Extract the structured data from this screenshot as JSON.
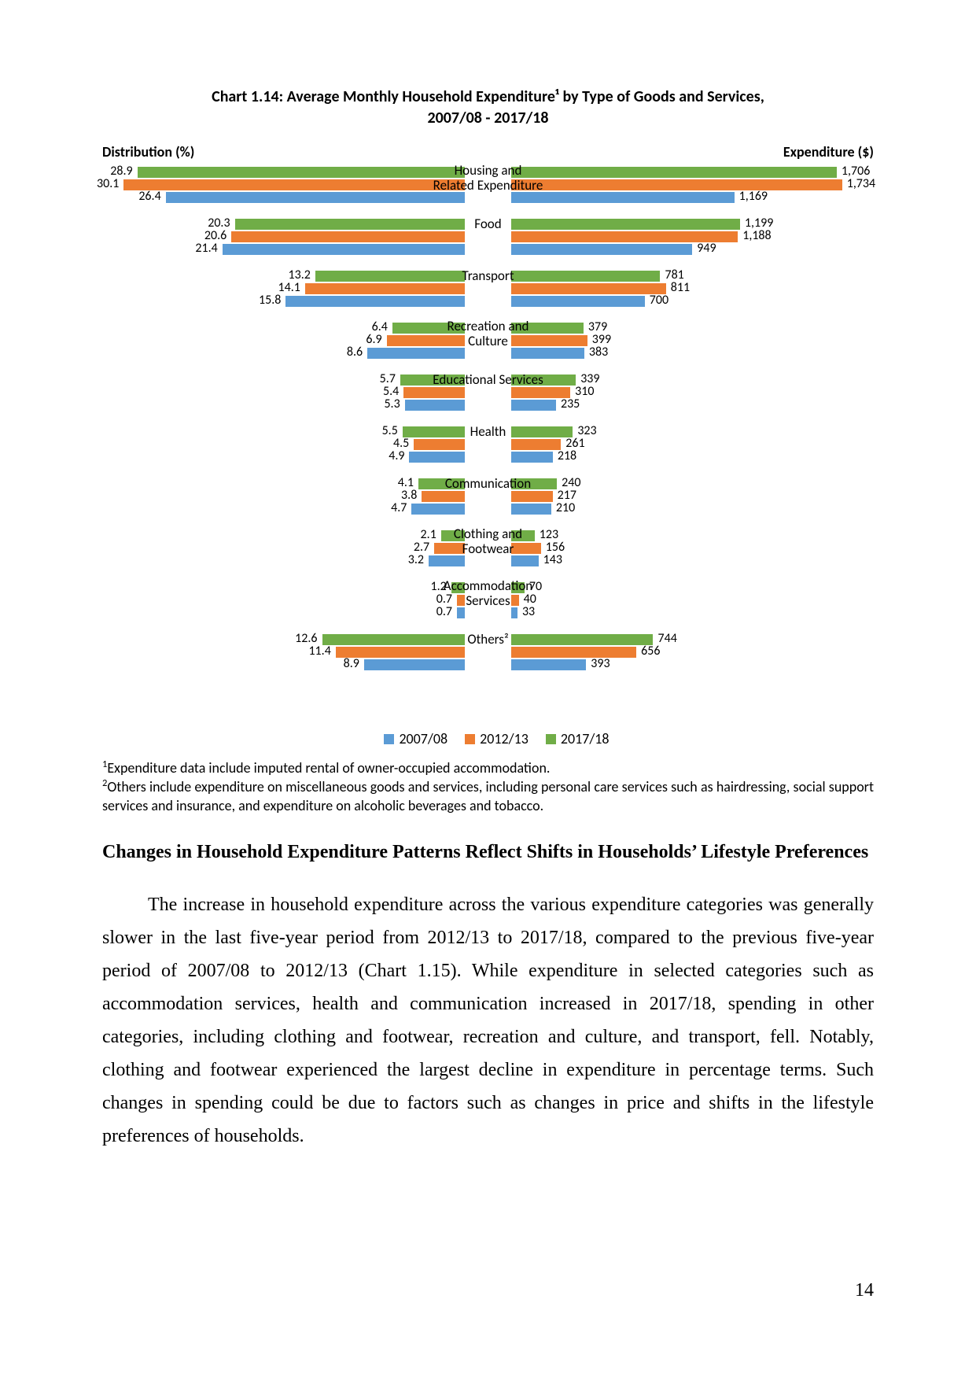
{
  "chart": {
    "title_line1": "Chart 1.14: Average Monthly Household Expenditure¹ by Type of Goods and Services,",
    "title_line2": "2007/08 - 2017/18",
    "axis_left": "Distribution (%)",
    "axis_right": "Expenditure ($)",
    "colors": {
      "y2017": "#70ad47",
      "y2012": "#ed7d31",
      "y2007": "#5b9bd5"
    },
    "dist_max": 32,
    "exp_max": 1900,
    "categories": [
      {
        "label": "Housing and Related Expenditure",
        "two_line": true,
        "dist": {
          "y2017": 28.9,
          "y2012": 30.1,
          "y2007": 26.4
        },
        "exp": {
          "y2017": "1,706",
          "y2012": "1,734",
          "y2007": "1,169"
        },
        "exp_n": {
          "y2017": 1706,
          "y2012": 1734,
          "y2007": 1169
        }
      },
      {
        "label": "Food",
        "dist": {
          "y2017": 20.3,
          "y2012": 20.6,
          "y2007": 21.4
        },
        "exp": {
          "y2017": "1,199",
          "y2012": "1,188",
          "y2007": "949"
        },
        "exp_n": {
          "y2017": 1199,
          "y2012": 1188,
          "y2007": 949
        }
      },
      {
        "label": "Transport",
        "dist": {
          "y2017": 13.2,
          "y2012": 14.1,
          "y2007": 15.8
        },
        "exp": {
          "y2017": "781",
          "y2012": "811",
          "y2007": "700"
        },
        "exp_n": {
          "y2017": 781,
          "y2012": 811,
          "y2007": 700
        }
      },
      {
        "label": "Recreation and Culture",
        "two_line": true,
        "dist": {
          "y2017": 6.4,
          "y2012": 6.9,
          "y2007": 8.6
        },
        "exp": {
          "y2017": "379",
          "y2012": "399",
          "y2007": "383"
        },
        "exp_n": {
          "y2017": 379,
          "y2012": 399,
          "y2007": 383
        }
      },
      {
        "label": "Educational Services",
        "dist": {
          "y2017": 5.7,
          "y2012": 5.4,
          "y2007": 5.3
        },
        "exp": {
          "y2017": "339",
          "y2012": "310",
          "y2007": "235"
        },
        "exp_n": {
          "y2017": 339,
          "y2012": 310,
          "y2007": 235
        }
      },
      {
        "label": "Health",
        "dist": {
          "y2017": 5.5,
          "y2012": 4.5,
          "y2007": 4.9
        },
        "exp": {
          "y2017": "323",
          "y2012": "261",
          "y2007": "218"
        },
        "exp_n": {
          "y2017": 323,
          "y2012": 261,
          "y2007": 218
        }
      },
      {
        "label": "Communication",
        "dist": {
          "y2017": 4.1,
          "y2012": 3.8,
          "y2007": 4.7
        },
        "exp": {
          "y2017": "240",
          "y2012": "217",
          "y2007": "210"
        },
        "exp_n": {
          "y2017": 240,
          "y2012": 217,
          "y2007": 210
        }
      },
      {
        "label": "Clothing and Footwear",
        "two_line": true,
        "dist": {
          "y2017": 2.1,
          "y2012": 2.7,
          "y2007": 3.2
        },
        "exp": {
          "y2017": "123",
          "y2012": "156",
          "y2007": "143"
        },
        "exp_n": {
          "y2017": 123,
          "y2012": 156,
          "y2007": 143
        }
      },
      {
        "label": "Accommodation Services",
        "two_line": true,
        "dist": {
          "y2017": 1.2,
          "y2012": 0.7,
          "y2007": 0.7
        },
        "exp": {
          "y2017": "70",
          "y2012": "40",
          "y2007": "33"
        },
        "exp_n": {
          "y2017": 70,
          "y2012": 40,
          "y2007": 33
        }
      },
      {
        "label": "Others²",
        "dist": {
          "y2017": 12.6,
          "y2012": 11.4,
          "y2007": 8.9
        },
        "exp": {
          "y2017": "744",
          "y2012": "656",
          "y2007": "393"
        },
        "exp_n": {
          "y2017": 744,
          "y2012": 656,
          "y2007": 393
        }
      }
    ],
    "legend": [
      {
        "key": "y2007",
        "label": "2007/08"
      },
      {
        "key": "y2012",
        "label": "2012/13"
      },
      {
        "key": "y2017",
        "label": "2017/18"
      }
    ]
  },
  "footnote1": "Expenditure data include imputed rental of owner-occupied accommodation.",
  "footnote2": "Others include expenditure on miscellaneous goods and services, including personal care services such as hairdressing, social support services and insurance, and expenditure on alcoholic beverages and tobacco.",
  "section_heading": "Changes in Household Expenditure Patterns Reflect Shifts in Households’ Lifestyle Preferences",
  "body_para": "The increase in household expenditure across the various expenditure categories was generally slower in the last five-year period from 2012/13 to 2017/18, compared to the previous five-year period of 2007/08 to 2012/13 (Chart 1.15). While expenditure in selected categories such as accommodation services, health and communication increased in 2017/18, spending in other categories, including clothing and footwear, recreation and culture, and transport, fell. Notably, clothing and footwear experienced the largest decline in expenditure in percentage terms. Such changes in spending could be due to factors such as changes in price and shifts in the lifestyle preferences of households.",
  "page_number": "14"
}
